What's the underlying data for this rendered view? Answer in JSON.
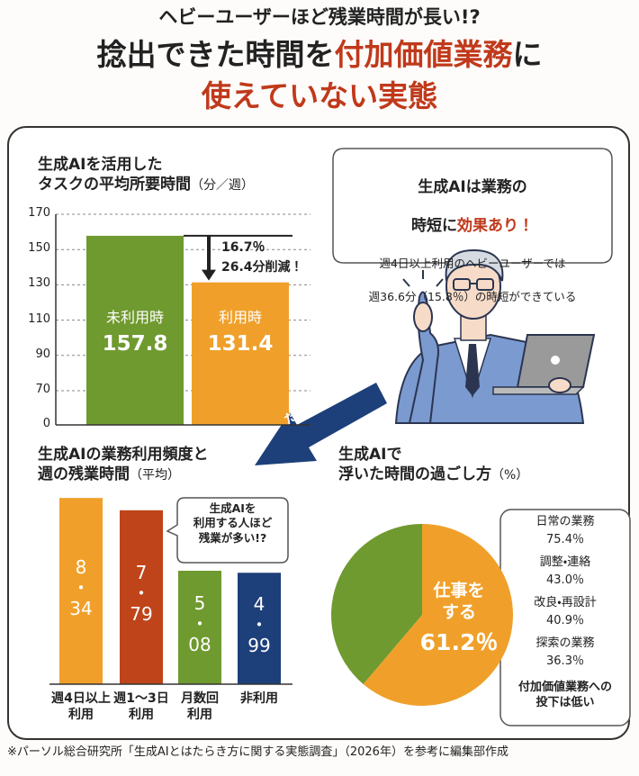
{
  "header": {
    "kicker": "ヘビーユーザーほど残業時間が長い!?",
    "title_1": "捻出できた時間を",
    "title_highlight": "付加価値業務",
    "title_2": "に",
    "title_3": "使えていない実態"
  },
  "chart_data": [
    {
      "type": "bar",
      "title": "生成AIを活用した\nタスクの平均所要時間",
      "subtitle": "（分／週）",
      "categories": [
        "未利用時",
        "利用時"
      ],
      "values": [
        157.8,
        131.4
      ],
      "colors": [
        "#6f9a2f",
        "#f0a02a"
      ],
      "ylim": [
        0,
        170
      ],
      "yticks": [
        0,
        70,
        90,
        110,
        130,
        150,
        170
      ],
      "axis_break": [
        0,
        70
      ],
      "grid": true,
      "annotations": [
        "16.7％",
        "26.4分削減！"
      ]
    },
    {
      "type": "bar",
      "title": "生成AIの業務利用頻度と\n週の残業時間",
      "subtitle": "（平均）",
      "categories": [
        "週4日以上\n利用",
        "週1〜3日\n利用",
        "月数回\n利用",
        "非利用"
      ],
      "values": [
        8.34,
        7.79,
        5.08,
        4.99
      ],
      "value_labels": [
        "8\n・\n34",
        "7\n・\n79",
        "5\n・\n08",
        "4\n・\n99"
      ],
      "colors": [
        "#f0a02a",
        "#bf4419",
        "#6f9a2f",
        "#1d3f7a"
      ],
      "annotation": "生成AIを\n利用する人ほど\n残業が多い!?"
    },
    {
      "type": "pie",
      "title": "生成AIで\n浮いた時間の過ごし方",
      "subtitle": "（%）",
      "categories": [
        "仕事を\nする",
        null
      ],
      "values": [
        61.2,
        38.8
      ],
      "value_labels": [
        "61.2％",
        null
      ],
      "colors": [
        "#f0a02a",
        "#6f9a2f"
      ]
    }
  ],
  "breakdown": {
    "items": [
      {
        "label": "日常の業務",
        "value": "75.4％"
      },
      {
        "label": "調整・連絡",
        "value": "43.0％"
      },
      {
        "label": "改良・再設計",
        "value": "40.9％"
      },
      {
        "label": "探索の業務",
        "value": "36.3％"
      }
    ],
    "note": "付加価値業務への\n投下は低い"
  },
  "callout": {
    "line_1": "生成AIは業務の",
    "line_2": "時短に",
    "line_2_highlight": "効果あり！",
    "line_3": "週4日以上利用のヘビーユーザーでは",
    "line_4": "週36.6分（15.8％）の時短ができている"
  },
  "transition": "だがしかし…",
  "footnote": "※パーソル総合研究所「生成AIとはたらき方に関する実態調査」（2026年）を参考に編集部作成"
}
